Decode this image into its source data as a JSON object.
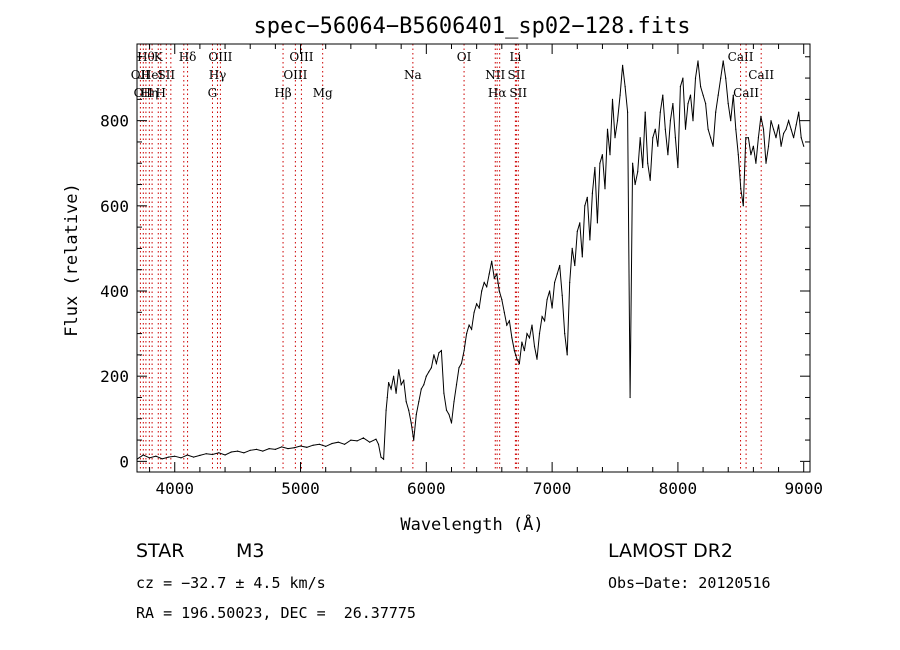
{
  "chart_data": {
    "type": "line",
    "title": "spec−56064−B5606401_sp02−128.fits",
    "xlabel": "Wavelength (Å)",
    "ylabel": "Flux (relative)",
    "xlim": [
      3700,
      9050
    ],
    "ylim": [
      -25,
      980
    ],
    "x_ticks": [
      4000,
      5000,
      6000,
      7000,
      8000,
      9000
    ],
    "y_ticks": [
      0,
      200,
      400,
      600,
      800
    ],
    "grid": false,
    "series": [
      {
        "color": "#000000",
        "x": [
          3700,
          3750,
          3800,
          3850,
          3900,
          3950,
          4000,
          4050,
          4100,
          4150,
          4200,
          4250,
          4300,
          4350,
          4400,
          4450,
          4500,
          4550,
          4600,
          4650,
          4700,
          4750,
          4800,
          4850,
          4900,
          4950,
          5000,
          5050,
          5100,
          5150,
          5200,
          5250,
          5300,
          5350,
          5400,
          5450,
          5500,
          5550,
          5600,
          5620,
          5640,
          5660,
          5680,
          5690,
          5700,
          5720,
          5740,
          5760,
          5780,
          5800,
          5820,
          5840,
          5860,
          5880,
          5900,
          5920,
          5940,
          5960,
          5980,
          6000,
          6020,
          6040,
          6060,
          6080,
          6100,
          6120,
          6140,
          6160,
          6180,
          6200,
          6220,
          6240,
          6260,
          6280,
          6300,
          6320,
          6340,
          6360,
          6380,
          6400,
          6420,
          6440,
          6460,
          6480,
          6500,
          6520,
          6540,
          6560,
          6580,
          6600,
          6620,
          6640,
          6660,
          6680,
          6700,
          6720,
          6740,
          6760,
          6780,
          6800,
          6820,
          6840,
          6860,
          6880,
          6900,
          6920,
          6940,
          6960,
          6980,
          7000,
          7020,
          7040,
          7060,
          7080,
          7100,
          7120,
          7140,
          7160,
          7180,
          7200,
          7220,
          7240,
          7260,
          7280,
          7300,
          7320,
          7340,
          7360,
          7380,
          7400,
          7420,
          7440,
          7460,
          7480,
          7500,
          7520,
          7540,
          7560,
          7580,
          7600,
          7620,
          7640,
          7660,
          7680,
          7700,
          7720,
          7740,
          7760,
          7780,
          7800,
          7820,
          7840,
          7860,
          7880,
          7900,
          7920,
          7940,
          7960,
          7980,
          8000,
          8020,
          8040,
          8060,
          8080,
          8100,
          8120,
          8140,
          8160,
          8180,
          8200,
          8220,
          8240,
          8260,
          8280,
          8300,
          8320,
          8340,
          8360,
          8380,
          8400,
          8420,
          8440,
          8460,
          8480,
          8500,
          8520,
          8540,
          8560,
          8580,
          8600,
          8620,
          8640,
          8660,
          8680,
          8700,
          8720,
          8740,
          8760,
          8780,
          8800,
          8820,
          8840,
          8860,
          8880,
          8900,
          8920,
          8940,
          8960,
          8980,
          9000
        ],
        "y": [
          5,
          15,
          8,
          12,
          6,
          10,
          12,
          8,
          15,
          10,
          14,
          18,
          16,
          20,
          15,
          22,
          24,
          20,
          26,
          28,
          24,
          30,
          28,
          34,
          30,
          32,
          36,
          33,
          38,
          40,
          35,
          42,
          45,
          40,
          50,
          48,
          55,
          45,
          52,
          40,
          10,
          5,
          120,
          150,
          185,
          170,
          200,
          160,
          215,
          180,
          190,
          140,
          120,
          90,
          50,
          110,
          140,
          170,
          180,
          200,
          210,
          220,
          250,
          230,
          255,
          260,
          160,
          120,
          110,
          90,
          140,
          180,
          220,
          230,
          260,
          300,
          320,
          310,
          350,
          370,
          360,
          400,
          420,
          410,
          440,
          470,
          430,
          440,
          400,
          380,
          350,
          320,
          330,
          290,
          260,
          240,
          230,
          280,
          260,
          300,
          290,
          320,
          270,
          240,
          300,
          340,
          330,
          380,
          400,
          360,
          420,
          440,
          460,
          390,
          300,
          250,
          420,
          500,
          460,
          540,
          560,
          480,
          600,
          620,
          520,
          630,
          690,
          560,
          700,
          720,
          640,
          780,
          720,
          850,
          760,
          800,
          860,
          930,
          880,
          820,
          150,
          700,
          650,
          680,
          760,
          690,
          820,
          700,
          660,
          760,
          780,
          740,
          820,
          860,
          780,
          720,
          800,
          840,
          760,
          690,
          880,
          900,
          780,
          840,
          860,
          800,
          900,
          940,
          880,
          860,
          840,
          780,
          760,
          740,
          820,
          860,
          900,
          940,
          900,
          840,
          800,
          860,
          780,
          720,
          640,
          600,
          760,
          760,
          720,
          740,
          700,
          760,
          810,
          780,
          700,
          740,
          800,
          780,
          760,
          790,
          740,
          770,
          780,
          800,
          780,
          760,
          790,
          820,
          760,
          740
        ]
      }
    ],
    "line_markers": [
      {
        "x": 3727,
        "label": "OII",
        "row": 2
      },
      {
        "x": 3750,
        "label": "OII",
        "row": 3
      },
      {
        "x": 3771,
        "label": "Hθ",
        "row": 1
      },
      {
        "x": 3798,
        "label": "Hη",
        "row": 3
      },
      {
        "x": 3820,
        "label": "HeI",
        "row": 2
      },
      {
        "x": 3869,
        "label": "K",
        "row": 1
      },
      {
        "x": 3889,
        "label": "H",
        "row": 3
      },
      {
        "x": 3933,
        "label": "SII",
        "row": 2
      },
      {
        "x": 3969,
        "label": "",
        "row": 0
      },
      {
        "x": 4072,
        "label": "",
        "row": 0
      },
      {
        "x": 4102,
        "label": "Hδ",
        "row": 1
      },
      {
        "x": 4300,
        "label": "G",
        "row": 3
      },
      {
        "x": 4340,
        "label": "Hγ",
        "row": 2
      },
      {
        "x": 4363,
        "label": "OIII",
        "row": 1
      },
      {
        "x": 4861,
        "label": "Hβ",
        "row": 3
      },
      {
        "x": 4959,
        "label": "OIII",
        "row": 2
      },
      {
        "x": 5007,
        "label": "OIII",
        "row": 1
      },
      {
        "x": 5176,
        "label": "Mg",
        "row": 3
      },
      {
        "x": 5893,
        "label": "Na",
        "row": 2
      },
      {
        "x": 6300,
        "label": "OI",
        "row": 1
      },
      {
        "x": 6548,
        "label": "NII",
        "row": 2
      },
      {
        "x": 6563,
        "label": "Hα",
        "row": 3
      },
      {
        "x": 6583,
        "label": "",
        "row": 0
      },
      {
        "x": 6708,
        "label": "Li",
        "row": 1
      },
      {
        "x": 6716,
        "label": "SII",
        "row": 2
      },
      {
        "x": 6731,
        "label": "SII",
        "row": 3
      },
      {
        "x": 8498,
        "label": "CaII",
        "row": 1
      },
      {
        "x": 8542,
        "label": "CaII",
        "row": 3
      },
      {
        "x": 8662,
        "label": "CaII",
        "row": 2
      }
    ]
  },
  "info": {
    "object_class": "STAR",
    "subclass": "M3",
    "survey": "LAMOST DR2",
    "redshift": "cz = −32.7 ± 4.5 km/s",
    "obs_date": "Obs−Date: 20120516",
    "coords": "RA = 196.50023, DEC =  26.37775"
  }
}
